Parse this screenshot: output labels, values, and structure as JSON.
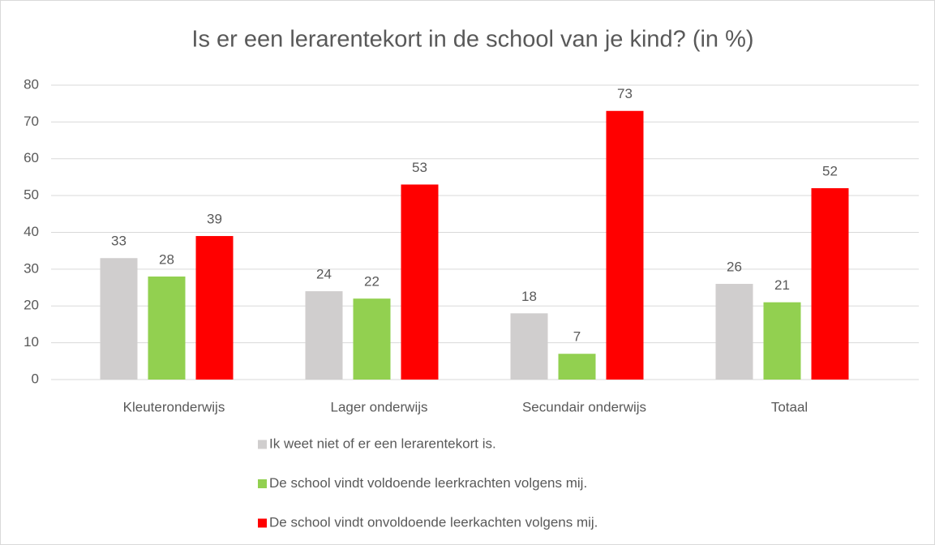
{
  "chart_data": {
    "type": "bar",
    "title": "Is er een lerarentekort in de school van je kind? (in %)",
    "categories": [
      "Kleuteronderwijs",
      "Lager onderwijs",
      "Secundair onderwijs",
      "Totaal"
    ],
    "series": [
      {
        "name": "Ik weet niet of er een lerarentekort is.",
        "color": "#d0cece",
        "values": [
          33,
          24,
          18,
          26
        ]
      },
      {
        "name": "De school vindt voldoende leerkrachten volgens mij.",
        "color": "#92d050",
        "values": [
          28,
          22,
          7,
          21
        ]
      },
      {
        "name": "De school vindt onvoldoende leerkachten volgens mij.",
        "color": "#ff0000",
        "values": [
          39,
          53,
          73,
          52
        ]
      }
    ],
    "ylim": [
      0,
      80
    ],
    "yticks": [
      0,
      10,
      20,
      30,
      40,
      50,
      60,
      70,
      80
    ],
    "grid": true,
    "legend": "bottom"
  }
}
